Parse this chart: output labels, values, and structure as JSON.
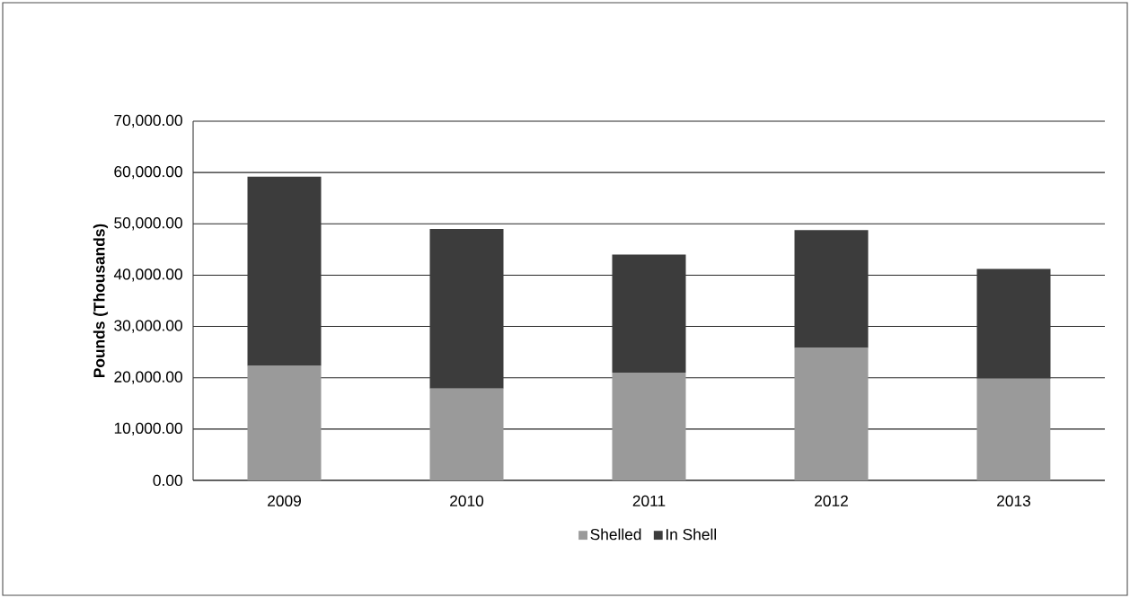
{
  "chart_data": {
    "type": "bar",
    "stacked": true,
    "ylabel": "Pounds (Thousands)",
    "categories": [
      "2009",
      "2010",
      "2011",
      "2012",
      "2013"
    ],
    "series": [
      {
        "name": "Shelled",
        "color": "#9a9a9a",
        "values": [
          22300,
          17900,
          21000,
          25800,
          19800
        ]
      },
      {
        "name": "In Shell",
        "color": "#3c3c3c",
        "values": [
          36900,
          31100,
          23000,
          23000,
          21400
        ]
      }
    ],
    "ylim": [
      0,
      70000
    ],
    "yticks": [
      {
        "value": 0,
        "label": "0.00"
      },
      {
        "value": 10000,
        "label": "10,000.00"
      },
      {
        "value": 20000,
        "label": "20,000.00"
      },
      {
        "value": 30000,
        "label": "30,000.00"
      },
      {
        "value": 40000,
        "label": "40,000.00"
      },
      {
        "value": 50000,
        "label": "50,000.00"
      },
      {
        "value": 60000,
        "label": "60,000.00"
      },
      {
        "value": 70000,
        "label": "70,000.00"
      }
    ],
    "grid": "y",
    "legend": "bottom"
  }
}
